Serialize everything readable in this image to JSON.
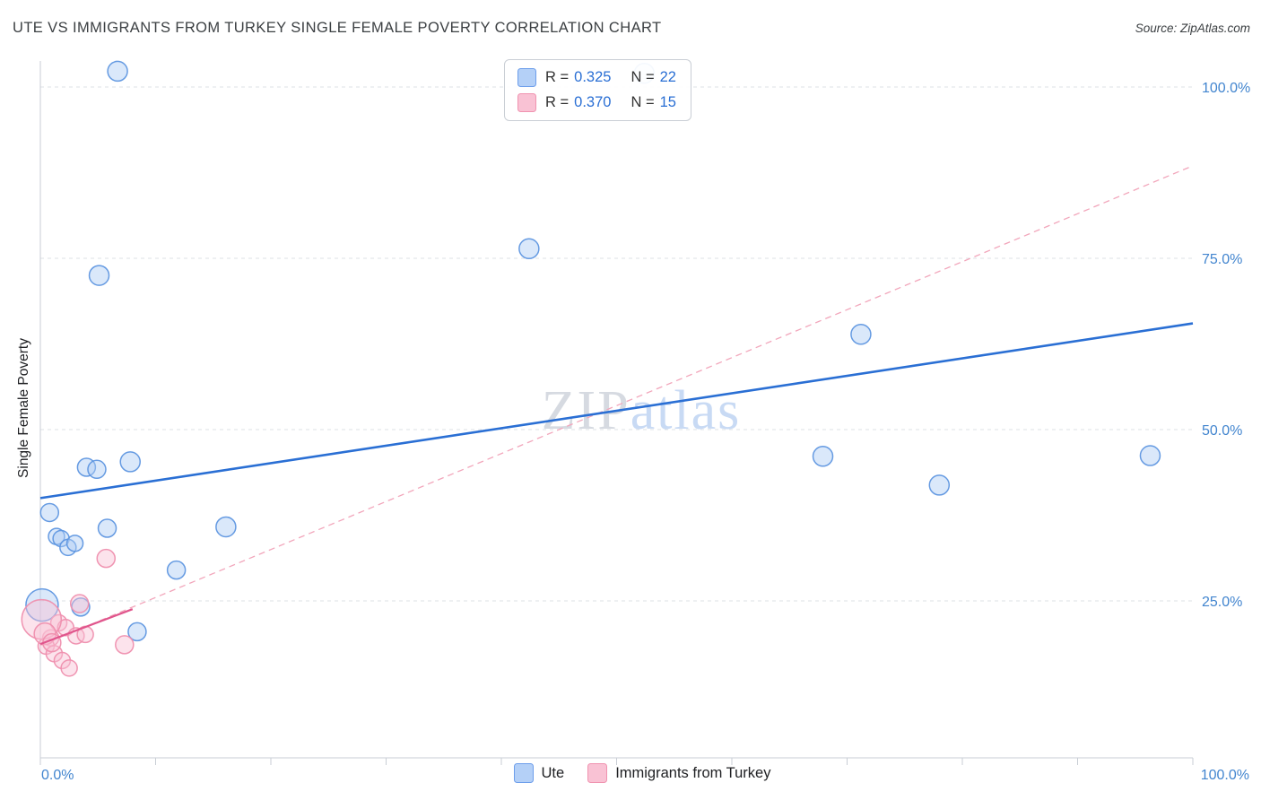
{
  "header": {
    "title": "UTE VS IMMIGRANTS FROM TURKEY SINGLE FEMALE POVERTY CORRELATION CHART",
    "source": "Source: ZipAtlas.com"
  },
  "watermark": {
    "part1": "ZIP",
    "part2": "atlas"
  },
  "axes": {
    "y_label": "Single Female Poverty",
    "x_min_label": "0.0%",
    "x_max_label": "100.0%"
  },
  "legend_box": {
    "series": [
      {
        "r_label": "R =",
        "r": "0.325",
        "n_label": "N =",
        "n": "22"
      },
      {
        "r_label": "R =",
        "r": "0.370",
        "n_label": "N =",
        "n": "15"
      }
    ]
  },
  "bottom_legend": {
    "items": [
      {
        "label": "Ute"
      },
      {
        "label": "Immigrants from Turkey"
      }
    ]
  },
  "colors": {
    "axis_line": "#c9ced5",
    "gridline": "#dde1e6",
    "tick_label_blue": "#4285cf",
    "watermark_gray": "#d2d7de",
    "watermark_blue": "#c3d6f3"
  },
  "chart_data": {
    "type": "scatter",
    "title": "UTE VS IMMIGRANTS FROM TURKEY SINGLE FEMALE POVERTY CORRELATION CHART",
    "xlabel": "",
    "ylabel": "Single Female Poverty",
    "xlim": [
      0,
      100
    ],
    "ylim": [
      0,
      105
    ],
    "grid": true,
    "x_axis_ticks": [
      0,
      10,
      20,
      30,
      40,
      50,
      60,
      70,
      80,
      90,
      100
    ],
    "y_ticks": [
      {
        "value": 25,
        "label": "25.0%"
      },
      {
        "value": 50,
        "label": "50.0%"
      },
      {
        "value": 75,
        "label": "75.0%"
      },
      {
        "value": 100,
        "label": "100.0%"
      }
    ],
    "series": [
      {
        "name": "Ute",
        "R": 0.325,
        "N": 22,
        "fill": "#aecdf5",
        "stroke": "#5e96e0",
        "points": [
          [
            6.7,
            102.3,
            11
          ],
          [
            52.4,
            102.0,
            11
          ],
          [
            42.4,
            76.4,
            11
          ],
          [
            5.1,
            72.5,
            11
          ],
          [
            71.2,
            63.9,
            11
          ],
          [
            96.3,
            46.2,
            11
          ],
          [
            67.9,
            46.1,
            11
          ],
          [
            78.0,
            41.9,
            11
          ],
          [
            7.8,
            45.3,
            11
          ],
          [
            4.0,
            44.5,
            10
          ],
          [
            4.9,
            44.2,
            10
          ],
          [
            0.8,
            37.9,
            10
          ],
          [
            5.8,
            35.6,
            10
          ],
          [
            16.1,
            35.8,
            11
          ],
          [
            1.4,
            34.4,
            9
          ],
          [
            1.8,
            34.1,
            9
          ],
          [
            2.4,
            32.8,
            9
          ],
          [
            3.0,
            33.4,
            9
          ],
          [
            11.8,
            29.5,
            10
          ],
          [
            3.5,
            24.1,
            10
          ],
          [
            8.4,
            20.5,
            10
          ],
          [
            0.15,
            24.4,
            18
          ]
        ],
        "trend": {
          "x0": 0,
          "y0": 40.0,
          "x1": 100,
          "y1": 65.5,
          "color": "#2a6fd4",
          "dash": "",
          "width": 2.6
        }
      },
      {
        "name": "Immigrants from Turkey",
        "R": 0.37,
        "N": 15,
        "fill": "#f9c2d4",
        "stroke": "#ef8fae",
        "points": [
          [
            5.7,
            31.2,
            10
          ],
          [
            3.4,
            24.6,
            10
          ],
          [
            1.6,
            21.8,
            9
          ],
          [
            2.2,
            21.1,
            9
          ],
          [
            3.1,
            19.9,
            9
          ],
          [
            3.9,
            20.1,
            9
          ],
          [
            0.9,
            19.6,
            9
          ],
          [
            0.5,
            18.4,
            9
          ],
          [
            1.2,
            17.3,
            9
          ],
          [
            1.9,
            16.3,
            9
          ],
          [
            2.5,
            15.2,
            9
          ],
          [
            7.3,
            18.6,
            10
          ],
          [
            0.1,
            22.3,
            22
          ],
          [
            0.4,
            20.2,
            12
          ],
          [
            1.0,
            18.9,
            10
          ]
        ],
        "trend": {
          "x0": 0,
          "y0": 18.7,
          "x1": 8,
          "y1": 23.8,
          "color": "#e0558c",
          "dash": "",
          "width": 2.2
        },
        "trend_projection": {
          "x0": 0,
          "y0": 18.5,
          "x1": 100,
          "y1": 88.5,
          "color": "#f2a6bb",
          "dash": "7 5",
          "width": 1.3
        }
      }
    ]
  }
}
